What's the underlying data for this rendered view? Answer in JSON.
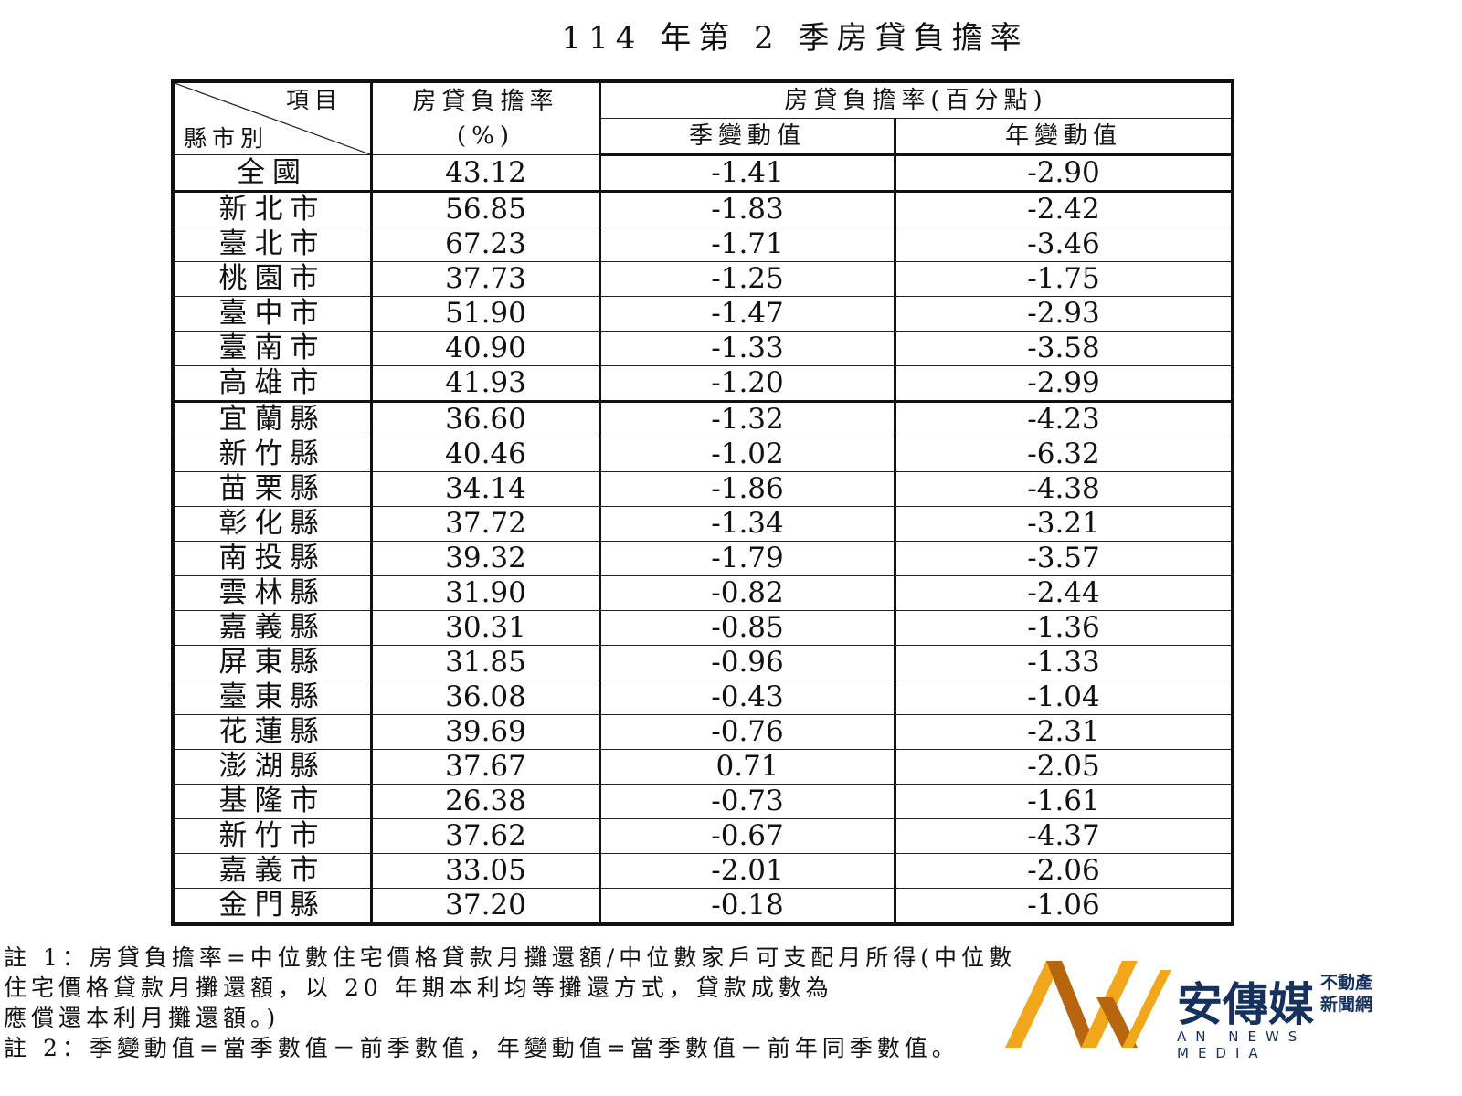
{
  "title": "114 年第 2 季房貸負擔率",
  "header": {
    "corner_item": "項目",
    "corner_region": "縣市別",
    "col_rate": "房貸負擔率",
    "col_rate_unit": "(%)",
    "col_change_group": "房貸負擔率(百分點)",
    "col_quarter": "季變動值",
    "col_year": "年變動值"
  },
  "rows": [
    {
      "region": "全國",
      "rate": "43.12",
      "qoq": "-1.41",
      "yoy": "-2.90"
    },
    {
      "region": "新北市",
      "rate": "56.85",
      "qoq": "-1.83",
      "yoy": "-2.42"
    },
    {
      "region": "臺北市",
      "rate": "67.23",
      "qoq": "-1.71",
      "yoy": "-3.46"
    },
    {
      "region": "桃園市",
      "rate": "37.73",
      "qoq": "-1.25",
      "yoy": "-1.75"
    },
    {
      "region": "臺中市",
      "rate": "51.90",
      "qoq": "-1.47",
      "yoy": "-2.93"
    },
    {
      "region": "臺南市",
      "rate": "40.90",
      "qoq": "-1.33",
      "yoy": "-3.58"
    },
    {
      "region": "高雄市",
      "rate": "41.93",
      "qoq": "-1.20",
      "yoy": "-2.99"
    },
    {
      "region": "宜蘭縣",
      "rate": "36.60",
      "qoq": "-1.32",
      "yoy": "-4.23"
    },
    {
      "region": "新竹縣",
      "rate": "40.46",
      "qoq": "-1.02",
      "yoy": "-6.32"
    },
    {
      "region": "苗栗縣",
      "rate": "34.14",
      "qoq": "-1.86",
      "yoy": "-4.38"
    },
    {
      "region": "彰化縣",
      "rate": "37.72",
      "qoq": "-1.34",
      "yoy": "-3.21"
    },
    {
      "region": "南投縣",
      "rate": "39.32",
      "qoq": "-1.79",
      "yoy": "-3.57"
    },
    {
      "region": "雲林縣",
      "rate": "31.90",
      "qoq": "-0.82",
      "yoy": "-2.44"
    },
    {
      "region": "嘉義縣",
      "rate": "30.31",
      "qoq": "-0.85",
      "yoy": "-1.36"
    },
    {
      "region": "屏東縣",
      "rate": "31.85",
      "qoq": "-0.96",
      "yoy": "-1.33"
    },
    {
      "region": "臺東縣",
      "rate": "36.08",
      "qoq": "-0.43",
      "yoy": "-1.04"
    },
    {
      "region": "花蓮縣",
      "rate": "39.69",
      "qoq": "-0.76",
      "yoy": "-2.31"
    },
    {
      "region": "澎湖縣",
      "rate": "37.67",
      "qoq": "0.71",
      "yoy": "-2.05"
    },
    {
      "region": "基隆市",
      "rate": "26.38",
      "qoq": "-0.73",
      "yoy": "-1.61"
    },
    {
      "region": "新竹市",
      "rate": "37.62",
      "qoq": "-0.67",
      "yoy": "-4.37"
    },
    {
      "region": "嘉義市",
      "rate": "33.05",
      "qoq": "-2.01",
      "yoy": "-2.06"
    },
    {
      "region": "金門縣",
      "rate": "37.20",
      "qoq": "-0.18",
      "yoy": "-1.06"
    }
  ],
  "notes": {
    "note1_line1": "註 1：房貸負擔率=中位數住宅價格貸款月攤還額/中位數家戶可支配月所得(中位數",
    "note1_line2": "住宅價格貸款月攤還額，以 20 年期本利均等攤還方式，貸款成數為",
    "note1_line3": "應償還本利月攤還額。)",
    "note2": "註 2：季變動值=當季數值－前季數值，年變動值=當季數值－前年同季數值。"
  },
  "watermark": {
    "name": "安傳媒",
    "sub1": "不動產",
    "sub2": "新聞網",
    "en": "AN NEWS MEDIA",
    "colors": [
      "#f2a61c",
      "#b8650f",
      "#16325c"
    ]
  }
}
